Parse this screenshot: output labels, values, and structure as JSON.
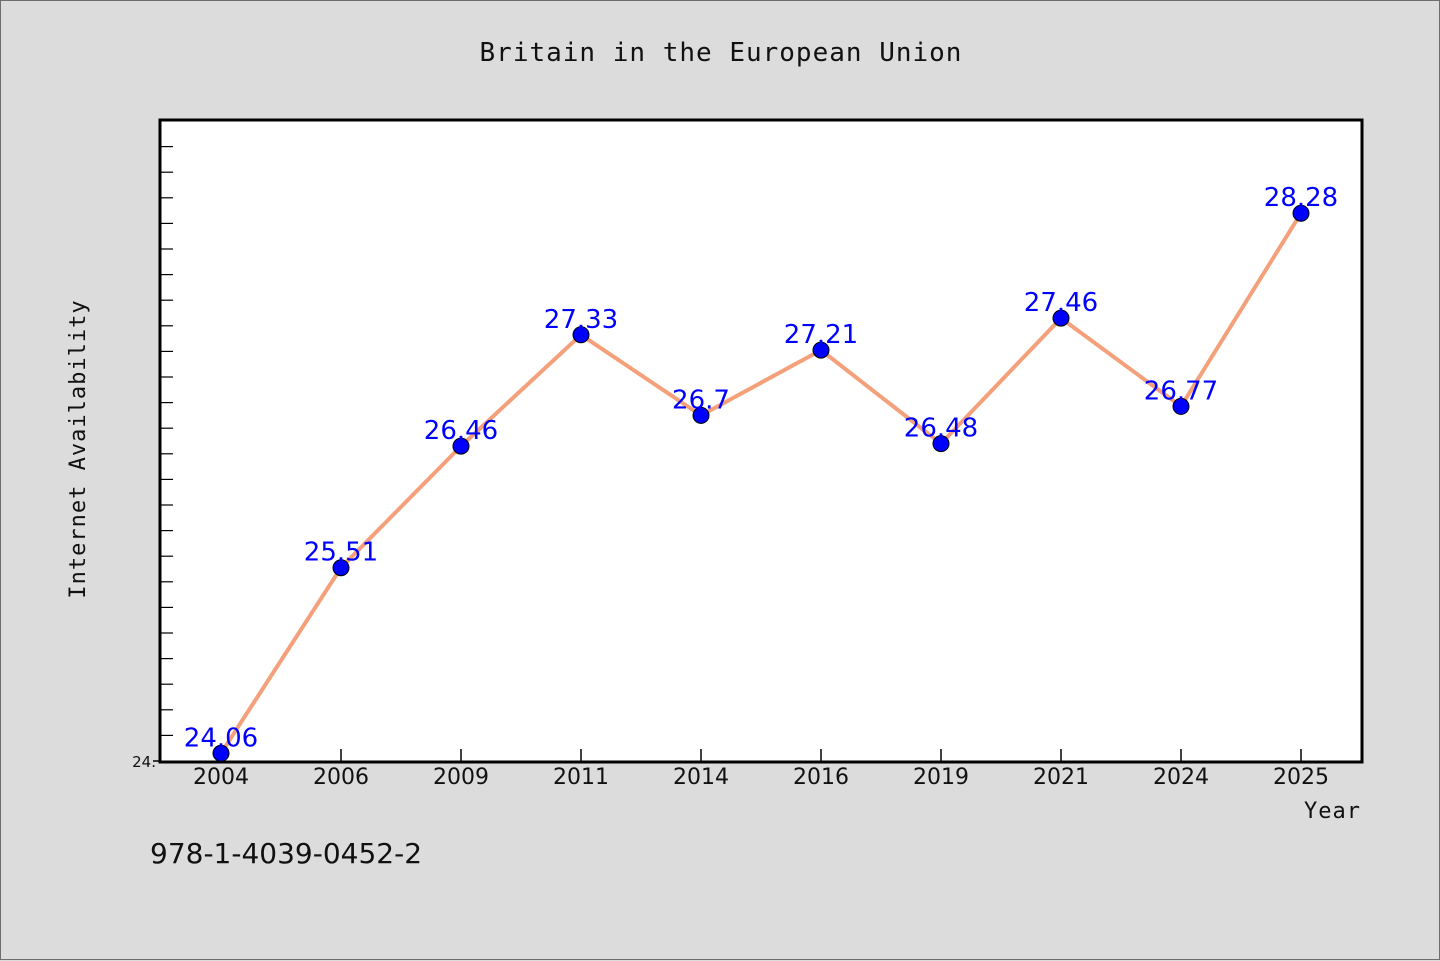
{
  "chart_data": {
    "type": "line",
    "title": "Britain in the European Union",
    "xlabel": "Year",
    "ylabel": "Internet Availability",
    "categories": [
      "2004",
      "2006",
      "2009",
      "2011",
      "2014",
      "2016",
      "2019",
      "2021",
      "2024",
      "2025"
    ],
    "series": [
      {
        "values": [
          24.06,
          25.51,
          26.46,
          27.33,
          26.7,
          27.21,
          26.48,
          27.46,
          26.77,
          28.28
        ],
        "labels": [
          "24.06",
          "25.51",
          "26.46",
          "27.33",
          "26.7",
          "27.21",
          "26.48",
          "27.46",
          "26.77",
          "28.28"
        ]
      }
    ],
    "ylim": [
      24.0,
      29.0
    ],
    "y_tick_label": "24.",
    "grid": false,
    "line_color": "#f4a07a",
    "marker_color": "#0000ff"
  },
  "footer": {
    "text": "978-1-4039-0452-2"
  }
}
